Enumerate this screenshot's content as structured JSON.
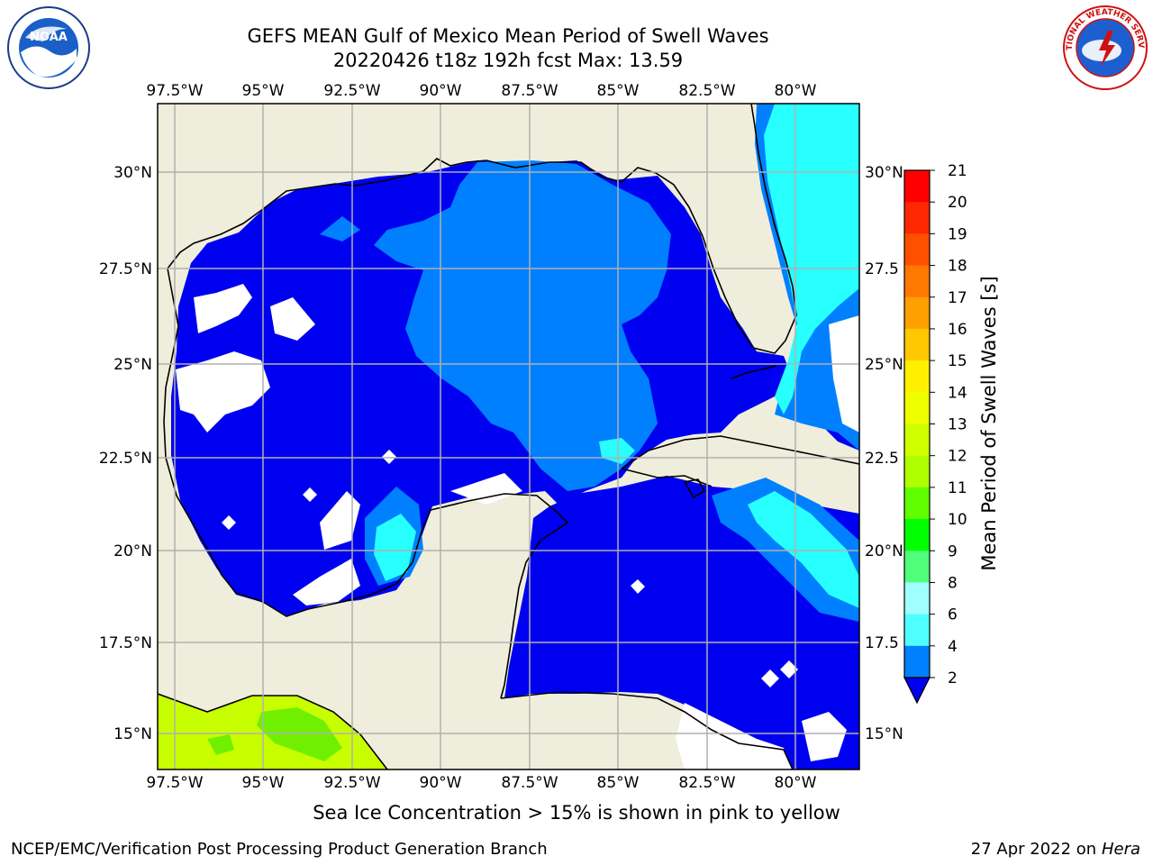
{
  "title": {
    "line1": "GEFS MEAN Gulf of Mexico Mean Period of Swell Waves",
    "line2": "20220426 t18z 192h fcst   Max: 13.59"
  },
  "map": {
    "lon_labels": [
      "97.5°W",
      "95°W",
      "92.5°W",
      "90°W",
      "87.5°W",
      "85°W",
      "82.5°W",
      "80°W"
    ],
    "lat_labels_left": [
      "30°N",
      "27.5°N",
      "25°N",
      "22.5°N",
      "20°N",
      "17.5°N",
      "15°N"
    ],
    "lat_labels_right": [
      "30°N",
      "27.5",
      "25°N",
      "22.5",
      "20°N",
      "17.5",
      "15°N"
    ],
    "colors": {
      "land": "#efeedc",
      "water_low": "#0000f0",
      "water_mid": "#0080ff",
      "water_high": "#28ffff"
    }
  },
  "colorbar": {
    "label": "Mean Period of Swell Waves [s]",
    "ticks": [
      "21",
      "20",
      "19",
      "18",
      "17",
      "16",
      "15",
      "14",
      "13",
      "12",
      "11",
      "10",
      "9",
      "8",
      "6",
      "4",
      "2"
    ],
    "colors": [
      "#ff0000",
      "#ff2800",
      "#ff5000",
      "#ff7800",
      "#ffa000",
      "#ffc800",
      "#fff000",
      "#f0ff00",
      "#d0ff00",
      "#b0ff00",
      "#60ff00",
      "#00ff00",
      "#50ff7a",
      "#a0ffff",
      "#50ffff",
      "#00ffff",
      "#0080ff"
    ]
  },
  "caption": "Sea Ice Concentration > 15% is shown in pink to yellow",
  "credit": "NCEP/EMC/Verification Post Processing Product Generation Branch",
  "date": {
    "text": "27 Apr 2022 on ",
    "host": "Hera"
  },
  "logos": {
    "left": "NOAA",
    "right": "NATIONAL WEATHER SERVICE"
  }
}
